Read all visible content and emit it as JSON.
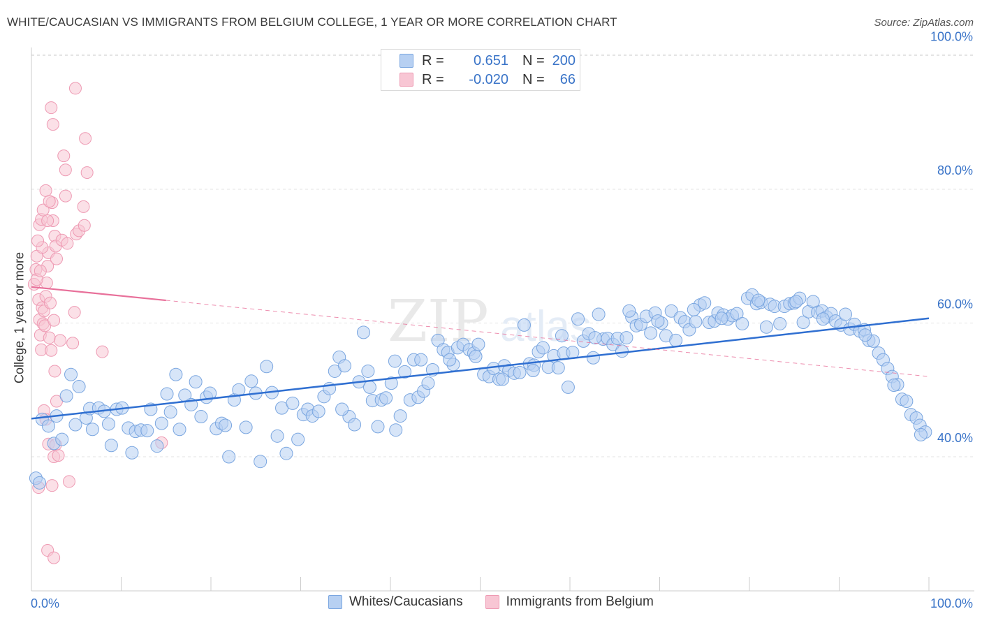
{
  "header": {
    "title": "WHITE/CAUCASIAN VS IMMIGRANTS FROM BELGIUM COLLEGE, 1 YEAR OR MORE CORRELATION CHART",
    "source": "Source: ZipAtlas.com"
  },
  "legend_top": {
    "rows": [
      {
        "r_label": "R =",
        "r_value": "0.651",
        "n_label": "N =",
        "n_value": "200"
      },
      {
        "r_label": "R =",
        "r_value": "-0.020",
        "n_label": "N =",
        "n_value": "66"
      }
    ]
  },
  "watermark": {
    "part1": "ZIP",
    "part2": "atlas"
  },
  "colors": {
    "blue_fill": "#b7d0f2",
    "blue_stroke": "#7aa6e0",
    "blue_line": "#2f6fd1",
    "pink_fill": "#f8c6d4",
    "pink_stroke": "#ee9ab3",
    "pink_line": "#e8709a",
    "axis_text": "#3a74c8",
    "grid": "#e3e3e3"
  },
  "chart_data": {
    "type": "scatter",
    "title": "WHITE/CAUCASIAN VS IMMIGRANTS FROM BELGIUM COLLEGE, 1 YEAR OR MORE CORRELATION CHART",
    "xlabel": "",
    "ylabel": "College, 1 year or more",
    "xlim": [
      0,
      100
    ],
    "ylim": [
      20,
      103
    ],
    "x_tick_labels": [
      "0.0%",
      "100.0%"
    ],
    "y_ticks": [
      40,
      60,
      80,
      100
    ],
    "y_tick_labels": [
      "40.0%",
      "60.0%",
      "80.0%",
      "100.0%"
    ],
    "grid": true,
    "legend": "bottom-center",
    "series": [
      {
        "name": "Whites/Caucasians",
        "r": 0.651,
        "n": 200,
        "trend": {
          "x": [
            0,
            100
          ],
          "y": [
            45.7,
            60.7
          ]
        },
        "points": [
          [
            0.5,
            36.8
          ],
          [
            0.9,
            36.1
          ],
          [
            1.2,
            45.6
          ],
          [
            1.9,
            44.6
          ],
          [
            2.5,
            42.0
          ],
          [
            2.8,
            46.1
          ],
          [
            3.4,
            42.6
          ],
          [
            3.9,
            49.1
          ],
          [
            4.4,
            52.3
          ],
          [
            4.9,
            44.8
          ],
          [
            5.3,
            50.5
          ],
          [
            6.1,
            45.8
          ],
          [
            6.5,
            47.2
          ],
          [
            6.8,
            44.1
          ],
          [
            7.5,
            47.3
          ],
          [
            8.1,
            46.8
          ],
          [
            8.6,
            44.9
          ],
          [
            8.9,
            41.7
          ],
          [
            9.5,
            47.1
          ],
          [
            10.1,
            47.3
          ],
          [
            10.8,
            44.3
          ],
          [
            11.2,
            40.6
          ],
          [
            11.6,
            43.8
          ],
          [
            12.2,
            44.0
          ],
          [
            12.9,
            43.9
          ],
          [
            13.3,
            47.1
          ],
          [
            14.0,
            41.6
          ],
          [
            14.5,
            45.0
          ],
          [
            15.1,
            49.4
          ],
          [
            15.5,
            46.7
          ],
          [
            16.1,
            52.3
          ],
          [
            16.5,
            44.1
          ],
          [
            17.1,
            49.2
          ],
          [
            17.8,
            47.8
          ],
          [
            18.3,
            51.2
          ],
          [
            18.9,
            46.0
          ],
          [
            19.5,
            48.9
          ],
          [
            19.9,
            49.5
          ],
          [
            20.6,
            44.2
          ],
          [
            21.2,
            45.0
          ],
          [
            21.6,
            44.7
          ],
          [
            22.0,
            40.0
          ],
          [
            22.6,
            48.5
          ],
          [
            23.1,
            50.0
          ],
          [
            23.9,
            44.4
          ],
          [
            24.5,
            51.3
          ],
          [
            25.0,
            49.5
          ],
          [
            25.5,
            39.3
          ],
          [
            26.2,
            53.5
          ],
          [
            26.8,
            49.6
          ],
          [
            27.4,
            43.1
          ],
          [
            27.9,
            47.3
          ],
          [
            28.4,
            40.5
          ],
          [
            29.1,
            48.0
          ],
          [
            29.7,
            42.6
          ],
          [
            30.3,
            46.3
          ],
          [
            30.8,
            47.1
          ],
          [
            31.3,
            46.1
          ],
          [
            32.0,
            46.8
          ],
          [
            32.6,
            49.0
          ],
          [
            33.2,
            50.2
          ],
          [
            33.8,
            52.8
          ],
          [
            34.3,
            54.9
          ],
          [
            34.9,
            53.6
          ],
          [
            35.4,
            46.0
          ],
          [
            36.0,
            44.8
          ],
          [
            36.5,
            51.2
          ],
          [
            37.0,
            58.6
          ],
          [
            37.5,
            52.8
          ],
          [
            38.0,
            48.4
          ],
          [
            38.6,
            44.5
          ],
          [
            39.0,
            48.5
          ],
          [
            39.5,
            48.8
          ],
          [
            40.1,
            51.0
          ],
          [
            40.6,
            44.0
          ],
          [
            41.1,
            46.1
          ],
          [
            41.6,
            52.7
          ],
          [
            42.2,
            48.5
          ],
          [
            42.6,
            54.5
          ],
          [
            43.1,
            48.9
          ],
          [
            43.7,
            49.8
          ],
          [
            44.2,
            51.0
          ],
          [
            44.7,
            53.0
          ],
          [
            45.3,
            57.4
          ],
          [
            45.9,
            56.0
          ],
          [
            46.4,
            55.6
          ],
          [
            47.0,
            53.8
          ],
          [
            47.5,
            56.3
          ],
          [
            48.1,
            56.8
          ],
          [
            48.8,
            56.0
          ],
          [
            49.3,
            55.5
          ],
          [
            49.8,
            56.8
          ],
          [
            50.4,
            52.3
          ],
          [
            51.0,
            52.0
          ],
          [
            51.5,
            53.2
          ],
          [
            52.1,
            51.6
          ],
          [
            52.7,
            53.6
          ],
          [
            53.2,
            52.9
          ],
          [
            53.8,
            52.5
          ],
          [
            54.4,
            52.6
          ],
          [
            54.9,
            59.7
          ],
          [
            55.5,
            53.9
          ],
          [
            56.0,
            53.7
          ],
          [
            56.5,
            55.7
          ],
          [
            57.0,
            56.3
          ],
          [
            57.6,
            53.4
          ],
          [
            58.2,
            55.1
          ],
          [
            58.7,
            53.3
          ],
          [
            59.3,
            55.5
          ],
          [
            59.8,
            50.4
          ],
          [
            60.3,
            55.6
          ],
          [
            60.9,
            60.6
          ],
          [
            61.5,
            57.3
          ],
          [
            62.1,
            58.4
          ],
          [
            62.6,
            54.8
          ],
          [
            63.2,
            61.3
          ],
          [
            63.7,
            57.6
          ],
          [
            64.2,
            57.7
          ],
          [
            64.8,
            56.8
          ],
          [
            65.3,
            57.7
          ],
          [
            65.8,
            55.8
          ],
          [
            66.3,
            57.8
          ],
          [
            66.9,
            60.9
          ],
          [
            67.4,
            59.6
          ],
          [
            67.9,
            59.8
          ],
          [
            68.5,
            61.0
          ],
          [
            69.0,
            58.5
          ],
          [
            69.5,
            61.5
          ],
          [
            70.2,
            60.0
          ],
          [
            70.7,
            58.1
          ],
          [
            71.3,
            61.8
          ],
          [
            71.8,
            57.4
          ],
          [
            72.3,
            60.8
          ],
          [
            72.8,
            60.2
          ],
          [
            73.3,
            59.0
          ],
          [
            74.0,
            60.2
          ],
          [
            74.5,
            62.7
          ],
          [
            75.0,
            63.0
          ],
          [
            75.5,
            60.1
          ],
          [
            76.1,
            60.3
          ],
          [
            76.5,
            61.5
          ],
          [
            77.1,
            61.2
          ],
          [
            77.6,
            60.6
          ],
          [
            78.1,
            61.1
          ],
          [
            78.6,
            61.4
          ],
          [
            79.2,
            59.9
          ],
          [
            79.8,
            63.7
          ],
          [
            80.3,
            64.2
          ],
          [
            80.8,
            62.9
          ],
          [
            81.3,
            63.1
          ],
          [
            81.9,
            59.4
          ],
          [
            82.3,
            62.8
          ],
          [
            82.8,
            62.5
          ],
          [
            83.4,
            59.9
          ],
          [
            83.9,
            62.5
          ],
          [
            84.5,
            62.9
          ],
          [
            85.0,
            63.0
          ],
          [
            85.6,
            63.7
          ],
          [
            86.0,
            60.1
          ],
          [
            86.6,
            61.7
          ],
          [
            87.1,
            63.2
          ],
          [
            87.6,
            61.6
          ],
          [
            88.1,
            61.8
          ],
          [
            88.6,
            60.9
          ],
          [
            89.1,
            61.4
          ],
          [
            89.6,
            60.3
          ],
          [
            90.2,
            59.7
          ],
          [
            90.7,
            61.3
          ],
          [
            91.2,
            59.1
          ],
          [
            91.7,
            59.8
          ],
          [
            92.3,
            58.8
          ],
          [
            92.8,
            59.0
          ],
          [
            93.3,
            57.4
          ],
          [
            93.8,
            57.3
          ],
          [
            94.4,
            55.5
          ],
          [
            94.9,
            54.5
          ],
          [
            95.4,
            53.2
          ],
          [
            95.9,
            52.0
          ],
          [
            96.5,
            50.8
          ],
          [
            97.0,
            48.6
          ],
          [
            97.5,
            48.3
          ],
          [
            98.0,
            46.3
          ],
          [
            98.6,
            45.8
          ],
          [
            99.0,
            44.7
          ],
          [
            99.6,
            43.7
          ],
          [
            99.1,
            43.3
          ],
          [
            96.1,
            50.7
          ],
          [
            92.9,
            58.2
          ],
          [
            88.2,
            60.6
          ],
          [
            85.2,
            63.2
          ],
          [
            81.0,
            63.4
          ],
          [
            76.9,
            60.7
          ],
          [
            73.8,
            62.0
          ],
          [
            69.8,
            60.3
          ],
          [
            66.6,
            61.8
          ],
          [
            62.8,
            57.8
          ],
          [
            59.1,
            58.1
          ],
          [
            55.9,
            52.9
          ],
          [
            52.5,
            51.6
          ],
          [
            49.5,
            55.0
          ],
          [
            46.6,
            54.5
          ],
          [
            43.4,
            54.5
          ],
          [
            40.5,
            54.3
          ],
          [
            37.7,
            50.4
          ],
          [
            34.6,
            47.1
          ]
        ]
      },
      {
        "name": "Immigrants from Belgium",
        "r": -0.02,
        "n": 66,
        "trend": {
          "x": [
            0,
            100
          ],
          "y": [
            65.4,
            52.0
          ]
        },
        "trend_solid_until_x": 15,
        "points": [
          [
            0.3,
            65.8
          ],
          [
            0.5,
            68.0
          ],
          [
            0.6,
            70.0
          ],
          [
            0.8,
            63.5
          ],
          [
            0.9,
            60.5
          ],
          [
            1.0,
            58.2
          ],
          [
            1.1,
            56.0
          ],
          [
            1.2,
            62.3
          ],
          [
            1.3,
            59.9
          ],
          [
            1.4,
            61.8
          ],
          [
            1.5,
            59.6
          ],
          [
            1.6,
            64.0
          ],
          [
            1.7,
            66.0
          ],
          [
            1.8,
            68.5
          ],
          [
            1.9,
            70.5
          ],
          [
            2.0,
            57.8
          ],
          [
            2.1,
            63.0
          ],
          [
            2.2,
            55.9
          ],
          [
            2.3,
            78.0
          ],
          [
            2.4,
            75.3
          ],
          [
            2.5,
            60.4
          ],
          [
            2.6,
            73.0
          ],
          [
            2.7,
            71.5
          ],
          [
            2.8,
            69.6
          ],
          [
            1.2,
            71.3
          ],
          [
            0.7,
            72.3
          ],
          [
            0.9,
            74.7
          ],
          [
            1.1,
            75.5
          ],
          [
            1.3,
            76.9
          ],
          [
            1.6,
            79.8
          ],
          [
            1.8,
            75.3
          ],
          [
            2.0,
            78.2
          ],
          [
            2.2,
            92.2
          ],
          [
            2.4,
            89.7
          ],
          [
            2.6,
            52.8
          ],
          [
            2.8,
            48.3
          ],
          [
            1.4,
            46.9
          ],
          [
            1.6,
            45.6
          ],
          [
            1.9,
            41.9
          ],
          [
            2.3,
            35.7
          ],
          [
            2.5,
            40.0
          ],
          [
            2.7,
            41.8
          ],
          [
            3.0,
            40.2
          ],
          [
            3.2,
            57.4
          ],
          [
            3.4,
            72.4
          ],
          [
            3.6,
            85.0
          ],
          [
            3.8,
            82.9
          ],
          [
            4.0,
            71.9
          ],
          [
            4.2,
            36.3
          ],
          [
            4.6,
            57.0
          ],
          [
            4.8,
            61.6
          ],
          [
            5.0,
            73.3
          ],
          [
            5.3,
            73.8
          ],
          [
            4.9,
            95.1
          ],
          [
            6.0,
            87.6
          ],
          [
            6.2,
            82.5
          ],
          [
            5.8,
            77.4
          ],
          [
            5.9,
            74.6
          ],
          [
            7.9,
            55.7
          ],
          [
            0.8,
            35.4
          ],
          [
            1.8,
            26.0
          ],
          [
            2.5,
            24.9
          ],
          [
            0.6,
            66.5
          ],
          [
            1.0,
            67.8
          ],
          [
            3.8,
            79.0
          ],
          [
            14.5,
            42.1
          ]
        ]
      }
    ]
  },
  "bottom_legend": [
    {
      "label": "Whites/Caucasians"
    },
    {
      "label": "Immigrants from Belgium"
    }
  ]
}
